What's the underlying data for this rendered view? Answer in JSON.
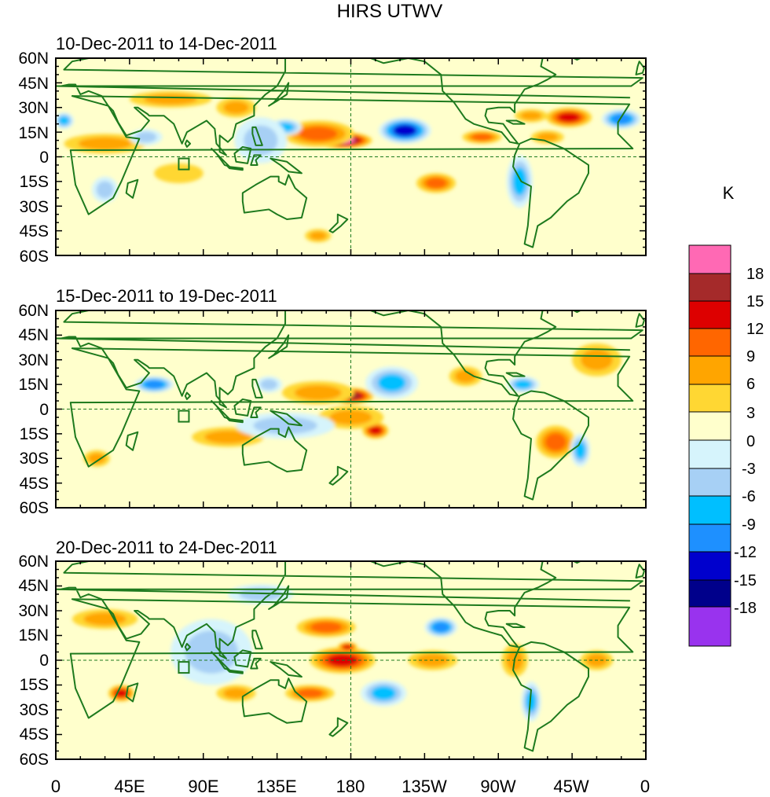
{
  "figure": {
    "title": "HIRS UTWV",
    "colorbar_unit": "K"
  },
  "panels": [
    {
      "title": "10-Dec-2011 to 14-Dec-2011"
    },
    {
      "title": "15-Dec-2011 to 19-Dec-2011"
    },
    {
      "title": "20-Dec-2011 to 24-Dec-2011"
    }
  ],
  "lat_ticks": [
    "60N",
    "45N",
    "30N",
    "15N",
    "0",
    "15S",
    "30S",
    "45S",
    "60S"
  ],
  "lon_ticks": [
    "0",
    "45E",
    "90E",
    "135E",
    "180",
    "135W",
    "90W",
    "45W",
    "0"
  ],
  "colorbar": {
    "labels": [
      "18",
      "15",
      "12",
      "9",
      "6",
      "3",
      "0",
      "-3",
      "-6",
      "-9",
      "-12",
      "-15",
      "-18"
    ],
    "colors": [
      "#ff69b4",
      "#a52a2a",
      "#dd0000",
      "#ff6600",
      "#ffa500",
      "#ffd733",
      "#ffffcc",
      "#d6f4fc",
      "#a7d0f5",
      "#00bfff",
      "#1e90ff",
      "#0000cd",
      "#00008b",
      "#9933ee"
    ]
  },
  "colors": {
    "coast": "#1e7a1e",
    "background_yellow": "#ffffcc"
  },
  "chart_data": {
    "type": "heatmap",
    "title": "HIRS UTWV",
    "variable_unit": "K",
    "x_range_deg": [
      0,
      360
    ],
    "y_range_deg": [
      -60,
      60
    ],
    "x_tick_labels": [
      "0",
      "45E",
      "90E",
      "135E",
      "180",
      "135W",
      "90W",
      "45W",
      "0"
    ],
    "y_tick_labels": [
      "60N",
      "45N",
      "30N",
      "15N",
      "0",
      "15S",
      "30S",
      "45S",
      "60S"
    ],
    "color_levels": [
      -18,
      -15,
      -12,
      -9,
      -6,
      -3,
      0,
      3,
      6,
      9,
      12,
      15,
      18
    ],
    "panels": [
      {
        "title": "10-Dec-2011 to 14-Dec-2011",
        "anomalies": [
          {
            "lon": 175,
            "lat": 10,
            "value": 18,
            "rx": 18,
            "ry": 5
          },
          {
            "lon": 160,
            "lat": 14,
            "value": 9,
            "rx": 22,
            "ry": 8
          },
          {
            "lon": 213,
            "lat": 16,
            "value": -15,
            "rx": 16,
            "ry": 8
          },
          {
            "lon": 140,
            "lat": 18,
            "value": -9,
            "rx": 10,
            "ry": 5
          },
          {
            "lon": 313,
            "lat": 24,
            "value": 12,
            "rx": 14,
            "ry": 6
          },
          {
            "lon": 290,
            "lat": 25,
            "value": 6,
            "rx": 10,
            "ry": 4
          },
          {
            "lon": 345,
            "lat": 23,
            "value": -12,
            "rx": 12,
            "ry": 6
          },
          {
            "lon": 5,
            "lat": 22,
            "value": -9,
            "rx": 6,
            "ry": 5
          },
          {
            "lon": 260,
            "lat": 12,
            "value": 9,
            "rx": 12,
            "ry": 4
          },
          {
            "lon": 300,
            "lat": 12,
            "value": 6,
            "rx": 10,
            "ry": 4
          },
          {
            "lon": 283,
            "lat": -15,
            "value": -9,
            "rx": 8,
            "ry": 16
          },
          {
            "lon": 232,
            "lat": -16,
            "value": 9,
            "rx": 12,
            "ry": 6
          },
          {
            "lon": 125,
            "lat": 10,
            "value": -6,
            "rx": 16,
            "ry": 14
          },
          {
            "lon": 30,
            "lat": 8,
            "value": 6,
            "rx": 25,
            "ry": 6
          },
          {
            "lon": 70,
            "lat": 35,
            "value": 6,
            "rx": 25,
            "ry": 5
          },
          {
            "lon": 55,
            "lat": 12,
            "value": -6,
            "rx": 10,
            "ry": 5
          },
          {
            "lon": 110,
            "lat": 30,
            "value": 6,
            "rx": 12,
            "ry": 6
          },
          {
            "lon": 160,
            "lat": -48,
            "value": 6,
            "rx": 8,
            "ry": 4
          },
          {
            "lon": 30,
            "lat": -20,
            "value": -6,
            "rx": 8,
            "ry": 8
          },
          {
            "lon": 75,
            "lat": -10,
            "value": 3,
            "rx": 15,
            "ry": 6
          }
        ]
      },
      {
        "title": "15-Dec-2011 to 19-Dec-2011",
        "anomalies": [
          {
            "lon": 180,
            "lat": 8,
            "value": 15,
            "rx": 14,
            "ry": 5
          },
          {
            "lon": 160,
            "lat": 10,
            "value": 6,
            "rx": 22,
            "ry": 7
          },
          {
            "lon": 208,
            "lat": 16,
            "value": -15,
            "rx": 8,
            "ry": 6
          },
          {
            "lon": 205,
            "lat": 16,
            "value": -9,
            "rx": 16,
            "ry": 10
          },
          {
            "lon": 195,
            "lat": -13,
            "value": 12,
            "rx": 8,
            "ry": 5
          },
          {
            "lon": 180,
            "lat": -5,
            "value": 6,
            "rx": 20,
            "ry": 7
          },
          {
            "lon": 105,
            "lat": -17,
            "value": 12,
            "rx": 16,
            "ry": 4
          },
          {
            "lon": 105,
            "lat": -17,
            "value": 6,
            "rx": 22,
            "ry": 6
          },
          {
            "lon": 140,
            "lat": -10,
            "value": -6,
            "rx": 30,
            "ry": 8
          },
          {
            "lon": 60,
            "lat": 15,
            "value": -12,
            "rx": 12,
            "ry": 5
          },
          {
            "lon": 335,
            "lat": 30,
            "value": 12,
            "rx": 10,
            "ry": 6
          },
          {
            "lon": 330,
            "lat": 30,
            "value": 6,
            "rx": 15,
            "ry": 10
          },
          {
            "lon": 285,
            "lat": 15,
            "value": -9,
            "rx": 10,
            "ry": 5
          },
          {
            "lon": 305,
            "lat": -20,
            "value": 9,
            "rx": 12,
            "ry": 10
          },
          {
            "lon": 320,
            "lat": -25,
            "value": -9,
            "rx": 6,
            "ry": 10
          },
          {
            "lon": 130,
            "lat": 15,
            "value": -6,
            "rx": 8,
            "ry": 5
          },
          {
            "lon": 25,
            "lat": -30,
            "value": 6,
            "rx": 8,
            "ry": 5
          },
          {
            "lon": 250,
            "lat": 20,
            "value": 6,
            "rx": 10,
            "ry": 6
          }
        ]
      },
      {
        "title": "20-Dec-2011 to 24-Dec-2011",
        "anomalies": [
          {
            "lon": 170,
            "lat": -2,
            "value": 18,
            "rx": 12,
            "ry": 5
          },
          {
            "lon": 175,
            "lat": 0,
            "value": 12,
            "rx": 20,
            "ry": 8
          },
          {
            "lon": 178,
            "lat": 8,
            "value": 12,
            "rx": 6,
            "ry": 3
          },
          {
            "lon": 165,
            "lat": 20,
            "value": 9,
            "rx": 18,
            "ry": 6
          },
          {
            "lon": 195,
            "lat": -20,
            "value": -15,
            "rx": 5,
            "ry": 4
          },
          {
            "lon": 200,
            "lat": -20,
            "value": -9,
            "rx": 14,
            "ry": 8
          },
          {
            "lon": 90,
            "lat": 10,
            "value": -12,
            "rx": 8,
            "ry": 8
          },
          {
            "lon": 95,
            "lat": 5,
            "value": -6,
            "rx": 25,
            "ry": 20
          },
          {
            "lon": 40,
            "lat": -20,
            "value": 12,
            "rx": 8,
            "ry": 5
          },
          {
            "lon": 155,
            "lat": -20,
            "value": 9,
            "rx": 15,
            "ry": 5
          },
          {
            "lon": 235,
            "lat": 20,
            "value": -12,
            "rx": 10,
            "ry": 6
          },
          {
            "lon": 283,
            "lat": -2,
            "value": 12,
            "rx": 4,
            "ry": 6
          },
          {
            "lon": 280,
            "lat": 0,
            "value": 6,
            "rx": 8,
            "ry": 10
          },
          {
            "lon": 290,
            "lat": -25,
            "value": -9,
            "rx": 6,
            "ry": 12
          },
          {
            "lon": 330,
            "lat": 0,
            "value": 6,
            "rx": 10,
            "ry": 6
          },
          {
            "lon": 125,
            "lat": 40,
            "value": -6,
            "rx": 20,
            "ry": 6
          },
          {
            "lon": 30,
            "lat": 25,
            "value": 6,
            "rx": 20,
            "ry": 6
          },
          {
            "lon": 110,
            "lat": -20,
            "value": 6,
            "rx": 12,
            "ry": 5
          },
          {
            "lon": 230,
            "lat": 0,
            "value": 6,
            "rx": 15,
            "ry": 6
          }
        ]
      }
    ]
  }
}
